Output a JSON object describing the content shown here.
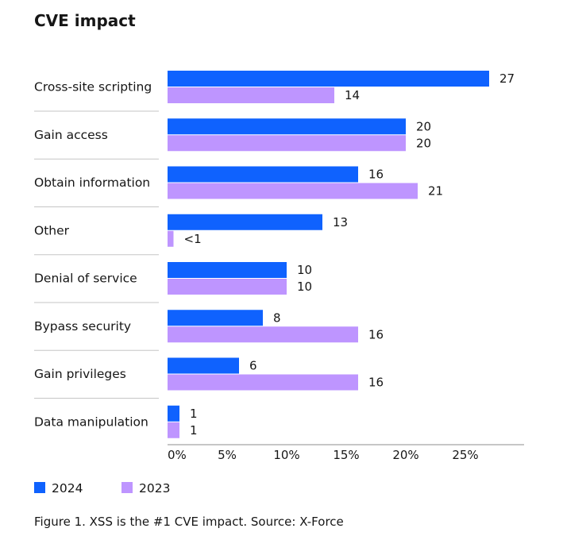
{
  "chart_data": {
    "type": "bar",
    "orientation": "horizontal",
    "title": "CVE impact",
    "categories": [
      "Cross-site scripting",
      "Gain access",
      "Obtain information",
      "Other",
      "Denial of service",
      "Bypass security",
      "Gain privileges",
      "Data manipulation"
    ],
    "series": [
      {
        "name": "2024",
        "color": "#0f62fe",
        "values": [
          27,
          20,
          16,
          13,
          10,
          8,
          6,
          1
        ],
        "labels": [
          "27",
          "20",
          "16",
          "13",
          "10",
          "8",
          "6",
          "1"
        ]
      },
      {
        "name": "2023",
        "color": "#be95ff",
        "values": [
          14,
          20,
          21,
          0.5,
          10,
          16,
          16,
          1
        ],
        "labels": [
          "14",
          "20",
          "21",
          "<1",
          "10",
          "16",
          "16",
          "1"
        ]
      }
    ],
    "xlim": [
      0,
      30
    ],
    "xticks": [
      0,
      5,
      10,
      15,
      20,
      25
    ],
    "xtick_labels": [
      "0%",
      "5%",
      "10%",
      "15%",
      "20%",
      "25%"
    ],
    "xlabel": "",
    "ylabel": "",
    "legend_position": "bottom-left",
    "grid": false
  },
  "caption": "Figure 1. XSS is the #1 CVE impact. Source: X-Force"
}
